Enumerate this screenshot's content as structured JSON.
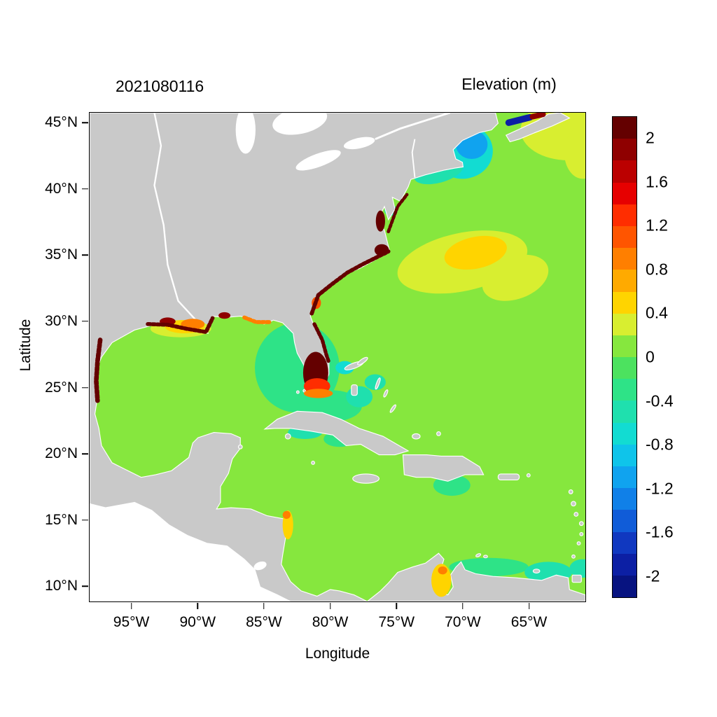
{
  "chart_data": {
    "type": "heatmap",
    "date_label": "2021080116",
    "axes": {
      "xlabel": "Longitude",
      "ylabel": "Latitude",
      "xlim": [
        -98.2,
        -60.7
      ],
      "ylim": [
        8.8,
        45.8
      ],
      "x_ticks": [
        {
          "value": -95,
          "label": "95°W"
        },
        {
          "value": -90,
          "label": "90°W"
        },
        {
          "value": -85,
          "label": "85°W"
        },
        {
          "value": -80,
          "label": "80°W"
        },
        {
          "value": -75,
          "label": "75°W"
        },
        {
          "value": -70,
          "label": "70°W"
        },
        {
          "value": -65,
          "label": "65°W"
        }
      ],
      "y_ticks": [
        {
          "value": 45,
          "label": "45°N"
        },
        {
          "value": 40,
          "label": "40°N"
        },
        {
          "value": 35,
          "label": "35°N"
        },
        {
          "value": 30,
          "label": "30°N"
        },
        {
          "value": 25,
          "label": "25°N"
        },
        {
          "value": 20,
          "label": "20°N"
        },
        {
          "value": 15,
          "label": "15°N"
        },
        {
          "value": 10,
          "label": "10°N"
        }
      ]
    },
    "colorbar": {
      "title": "Elevation (m)",
      "unit": "m",
      "vmax": 2.2,
      "vmin": -2.2,
      "step": 0.2,
      "ticks": [
        {
          "value": 2,
          "label": "2"
        },
        {
          "value": 1.6,
          "label": "1.6"
        },
        {
          "value": 1.2,
          "label": "1.2"
        },
        {
          "value": 0.8,
          "label": "0.8"
        },
        {
          "value": 0.4,
          "label": "0.4"
        },
        {
          "value": 0,
          "label": "0"
        },
        {
          "value": -0.4,
          "label": "-0.4"
        },
        {
          "value": -0.8,
          "label": "-0.8"
        },
        {
          "value": -1.2,
          "label": "-1.2"
        },
        {
          "value": -1.6,
          "label": "-1.6"
        },
        {
          "value": -2,
          "label": "-2"
        }
      ],
      "colors_top_to_bottom": [
        "#640000",
        "#8f0000",
        "#bb0000",
        "#e60000",
        "#ff2d00",
        "#ff5500",
        "#ff7f00",
        "#ffaa00",
        "#ffd400",
        "#d8ee30",
        "#86e73e",
        "#4ce25f",
        "#2ee387",
        "#1fe0ae",
        "#12dcd2",
        "#0fc4ea",
        "#10a3ef",
        "#1080e8",
        "#105cd8",
        "#1038c0",
        "#0c1fa4",
        "#071380"
      ]
    },
    "map_colors": {
      "land": "#c9c9c9",
      "shoreline": "#ffffff",
      "no_data_background": "#ffffff",
      "ocean_value": 0.1
    },
    "regions": [
      {
        "name": "gulf-stream-warm-band",
        "layer": "under",
        "shape": "ellipse",
        "lon": -70.0,
        "lat": 34.5,
        "rx": 5.0,
        "ry": 2.2,
        "rot": -12,
        "value": 0.3
      },
      {
        "name": "gulf-stream-warm-core",
        "layer": "under",
        "shape": "ellipse",
        "lon": -69.0,
        "lat": 35.2,
        "rx": 2.4,
        "ry": 1.2,
        "rot": -12,
        "value": 0.45
      },
      {
        "name": "gulf-stream-south-lobe",
        "layer": "under",
        "shape": "ellipse",
        "lon": -66.0,
        "lat": 33.3,
        "rx": 2.6,
        "ry": 1.6,
        "rot": -20,
        "value": 0.3
      },
      {
        "name": "scotian-shelf-high",
        "layer": "under",
        "shape": "ellipse",
        "lon": -62.0,
        "lat": 44.5,
        "rx": 3.6,
        "ry": 2.3,
        "rot": 0,
        "value": 0.3
      },
      {
        "name": "northeast-edge-high",
        "layer": "under",
        "shape": "ellipse",
        "lon": -60.9,
        "lat": 42.8,
        "rx": 1.4,
        "ry": 2.0,
        "rot": 0,
        "value": 0.3
      },
      {
        "name": "gulf-of-maine-low",
        "layer": "under",
        "shape": "ellipse",
        "lon": -70.0,
        "lat": 42.9,
        "rx": 2.3,
        "ry": 2.1,
        "rot": 0,
        "value": -0.7
      },
      {
        "name": "gulf-of-maine-low-core",
        "layer": "under",
        "shape": "ellipse",
        "lon": -69.3,
        "lat": 43.4,
        "rx": 1.2,
        "ry": 1.1,
        "rot": 0,
        "value": -1.05
      },
      {
        "name": "new-england-shelf-low",
        "layer": "under",
        "shape": "ellipse",
        "lon": -71.8,
        "lat": 41.3,
        "rx": 1.9,
        "ry": 0.8,
        "rot": -15,
        "value": -0.55
      },
      {
        "name": "delaware-mouth-low",
        "layer": "under",
        "shape": "ellipse",
        "lon": -75.4,
        "lat": 38.4,
        "rx": 0.5,
        "ry": 0.4,
        "rot": 0,
        "value": -0.5
      },
      {
        "name": "west-florida-shelf-low",
        "layer": "under",
        "shape": "ellipse",
        "lon": -82.5,
        "lat": 26.5,
        "rx": 3.2,
        "ry": 3.4,
        "rot": 0,
        "value": -0.2
      },
      {
        "name": "florida-straits-low",
        "layer": "under",
        "shape": "ellipse",
        "lon": -80.0,
        "lat": 23.6,
        "rx": 2.4,
        "ry": 1.2,
        "rot": 0,
        "value": -0.25
      },
      {
        "name": "bahamas-low-1",
        "layer": "under",
        "shape": "ellipse",
        "lon": -77.8,
        "lat": 24.3,
        "rx": 1.0,
        "ry": 0.8,
        "rot": 0,
        "value": -0.5
      },
      {
        "name": "bahamas-low-2",
        "layer": "under",
        "shape": "ellipse",
        "lon": -76.6,
        "lat": 25.4,
        "rx": 0.8,
        "ry": 0.6,
        "rot": 0,
        "value": -0.45
      },
      {
        "name": "grand-bahama-low",
        "layer": "under",
        "shape": "ellipse",
        "lon": -78.9,
        "lat": 26.5,
        "rx": 0.7,
        "ry": 0.5,
        "rot": 0,
        "value": -0.6
      },
      {
        "name": "batabano-low",
        "layer": "under",
        "shape": "ellipse",
        "lon": -81.9,
        "lat": 21.6,
        "rx": 1.3,
        "ry": 0.5,
        "rot": 0,
        "value": -0.5
      },
      {
        "name": "ana-maria-low",
        "layer": "under",
        "shape": "ellipse",
        "lon": -79.3,
        "lat": 21.1,
        "rx": 1.2,
        "ry": 0.6,
        "rot": 0,
        "value": -0.35
      },
      {
        "name": "hispaniola-south-low",
        "layer": "under",
        "shape": "ellipse",
        "lon": -70.8,
        "lat": 17.6,
        "rx": 1.4,
        "ry": 0.8,
        "rot": 0,
        "value": -0.3
      },
      {
        "name": "venezuela-shelf-low",
        "layer": "under",
        "shape": "ellipse",
        "lon": -68.0,
        "lat": 11.4,
        "rx": 3.0,
        "ry": 0.7,
        "rot": 0,
        "value": -0.35
      },
      {
        "name": "venezuela-east-low",
        "layer": "under",
        "shape": "ellipse",
        "lon": -63.5,
        "lat": 11.0,
        "rx": 1.8,
        "ry": 0.8,
        "rot": 0,
        "value": -0.5
      },
      {
        "name": "tobago-low",
        "layer": "under",
        "shape": "ellipse",
        "lon": -60.9,
        "lat": 11.3,
        "rx": 1.0,
        "ry": 0.7,
        "rot": 0,
        "value": -0.5
      },
      {
        "name": "lake-maracaibo-high",
        "layer": "over",
        "shape": "ellipse",
        "lon": -71.6,
        "lat": 10.4,
        "rx": 0.75,
        "ry": 1.25,
        "rot": 0,
        "value": 0.55
      },
      {
        "name": "maracaibo-mouth-high",
        "layer": "over",
        "shape": "ellipse",
        "lon": -71.5,
        "lat": 11.15,
        "rx": 0.35,
        "ry": 0.3,
        "rot": 0,
        "value": 0.85
      },
      {
        "name": "nicaragua-coast-high",
        "layer": "over",
        "shape": "ellipse",
        "lon": -83.2,
        "lat": 14.6,
        "rx": 0.4,
        "ry": 1.1,
        "rot": 0,
        "value": 0.5
      },
      {
        "name": "nicaragua-coast-high-core",
        "layer": "over",
        "shape": "ellipse",
        "lon": -83.3,
        "lat": 15.35,
        "rx": 0.3,
        "ry": 0.3,
        "rot": 0,
        "value": 0.85
      },
      {
        "name": "louisiana-shelf-high",
        "layer": "over",
        "shape": "ellipse",
        "lon": -91.3,
        "lat": 29.45,
        "rx": 2.3,
        "ry": 0.65,
        "rot": 0,
        "value": 0.3
      },
      {
        "name": "louisiana-shelf-high-2",
        "layer": "over",
        "shape": "ellipse",
        "lon": -91.0,
        "lat": 29.6,
        "rx": 1.5,
        "ry": 0.5,
        "rot": 0,
        "value": 0.5
      },
      {
        "name": "louisiana-shelf-high-3",
        "layer": "over",
        "shape": "ellipse",
        "lon": -90.4,
        "lat": 29.8,
        "rx": 0.9,
        "ry": 0.4,
        "rot": 0,
        "value": 0.9
      },
      {
        "name": "louisiana-coast-extreme",
        "layer": "over",
        "shape": "ellipse",
        "lon": -92.3,
        "lat": 30.0,
        "rx": 0.6,
        "ry": 0.3,
        "rot": 0,
        "value": 1.9
      },
      {
        "name": "south-florida-extreme",
        "layer": "over",
        "shape": "ellipse",
        "lon": -81.1,
        "lat": 26.1,
        "rx": 0.95,
        "ry": 1.6,
        "rot": 0,
        "value": 2.2
      },
      {
        "name": "south-florida-high-fringe",
        "layer": "over",
        "shape": "ellipse",
        "lon": -81.0,
        "lat": 25.1,
        "rx": 1.0,
        "ry": 0.6,
        "rot": 0,
        "value": 1.3
      },
      {
        "name": "florida-keys-high",
        "layer": "over",
        "shape": "ellipse",
        "lon": -80.9,
        "lat": 24.55,
        "rx": 1.1,
        "ry": 0.35,
        "rot": 0,
        "value": 0.9
      },
      {
        "name": "pamlico-sound-extreme",
        "layer": "over",
        "shape": "ellipse",
        "lon": -76.1,
        "lat": 35.4,
        "rx": 0.55,
        "ry": 0.45,
        "rot": 0,
        "value": 2.2
      },
      {
        "name": "chesapeake-bay-extreme",
        "layer": "over",
        "shape": "ellipse",
        "lon": -76.2,
        "lat": 37.6,
        "rx": 0.35,
        "ry": 0.8,
        "rot": 0,
        "value": 2.2
      },
      {
        "name": "mobile-bay-extreme",
        "layer": "over",
        "shape": "ellipse",
        "lon": -88.0,
        "lat": 30.45,
        "rx": 0.45,
        "ry": 0.25,
        "rot": 0,
        "value": 2.0
      },
      {
        "name": "georgia-coast-high",
        "layer": "over",
        "shape": "ellipse",
        "lon": -81.05,
        "lat": 31.4,
        "rx": 0.35,
        "ry": 0.45,
        "rot": 0,
        "value": 1.2
      },
      {
        "name": "texas-coast-speckles",
        "layer": "over",
        "shape": "band",
        "points": [
          [
            -97.4,
            28.6
          ],
          [
            -97.6,
            27.0
          ],
          [
            -97.7,
            25.5
          ],
          [
            -97.6,
            24.0
          ]
        ],
        "width": 0.35,
        "value": 2.2,
        "speckled": true
      },
      {
        "name": "gulf-coast-speckles",
        "layer": "over",
        "shape": "band",
        "points": [
          [
            -93.8,
            29.8
          ],
          [
            -92.3,
            29.75
          ],
          [
            -90.9,
            29.45
          ],
          [
            -89.4,
            29.2
          ],
          [
            -88.9,
            30.25
          ]
        ],
        "width": 0.3,
        "value": 2.2,
        "speckled": true
      },
      {
        "name": "southeast-coast-speckles",
        "layer": "over",
        "shape": "band",
        "points": [
          [
            -81.4,
            30.6
          ],
          [
            -80.9,
            32.0
          ],
          [
            -79.9,
            32.8
          ],
          [
            -78.7,
            33.7
          ],
          [
            -77.6,
            34.3
          ],
          [
            -76.4,
            34.9
          ],
          [
            -75.6,
            35.3
          ]
        ],
        "width": 0.3,
        "value": 2.2,
        "speckled": true
      },
      {
        "name": "florida-east-coast-speckles",
        "layer": "over",
        "shape": "band",
        "points": [
          [
            -81.2,
            29.8
          ],
          [
            -80.6,
            28.6
          ],
          [
            -80.3,
            27.5
          ],
          [
            -80.1,
            26.9
          ]
        ],
        "width": 0.28,
        "value": 2.2,
        "speckled": true
      },
      {
        "name": "midatlantic-coast-speckles",
        "layer": "over",
        "shape": "band",
        "points": [
          [
            -75.6,
            36.8
          ],
          [
            -75.2,
            37.9
          ],
          [
            -74.9,
            38.7
          ],
          [
            -74.2,
            39.6
          ]
        ],
        "width": 0.25,
        "value": 2.2,
        "speckled": true
      },
      {
        "name": "florida-panhandle-speckles",
        "layer": "over",
        "shape": "band",
        "points": [
          [
            -86.5,
            30.3
          ],
          [
            -85.6,
            29.95
          ],
          [
            -84.6,
            29.95
          ]
        ],
        "width": 0.3,
        "value": 1.0,
        "speckled": true
      },
      {
        "name": "bay-of-fundy-low",
        "layer": "over",
        "shape": "band",
        "points": [
          [
            -66.5,
            45.05
          ],
          [
            -64.9,
            45.45
          ]
        ],
        "width": 0.5,
        "value": -1.9,
        "speckled": false
      },
      {
        "name": "minas-basin-high",
        "layer": "over",
        "shape": "band",
        "points": [
          [
            -64.7,
            45.5
          ],
          [
            -63.9,
            45.68
          ]
        ],
        "width": 0.42,
        "value": 1.9,
        "speckled": false
      }
    ]
  }
}
